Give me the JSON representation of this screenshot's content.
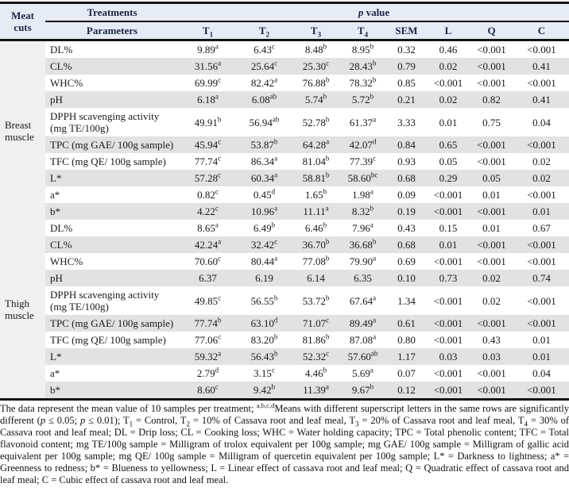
{
  "colors": {
    "header_bg": "#e6ecf6",
    "stripe_gray": "#e2e2e2",
    "group_column_bg": "#f0f0f0",
    "border_black": "#141414",
    "header_text": "#1c2340"
  },
  "header": {
    "meat_cuts": "Meat cuts",
    "treatments": "Treatments",
    "parameters": "Parameters",
    "p_italic": "p",
    "p_rest": " value",
    "t_cols": [
      {
        "t": "T",
        "sub": "1"
      },
      {
        "t": "T",
        "sub": "2"
      },
      {
        "t": "T",
        "sub": "3"
      },
      {
        "t": "T",
        "sub": "4"
      }
    ],
    "stat_cols": [
      "SEM",
      "L",
      "Q",
      "C"
    ]
  },
  "sections": [
    {
      "group": "Breast muscle",
      "rows": [
        {
          "param": "DL%",
          "values": [
            {
              "v": "9.89",
              "sup": "a"
            },
            {
              "v": "6.43",
              "sup": "c"
            },
            {
              "v": "8.48",
              "sup": "b"
            },
            {
              "v": "8.95",
              "sup": "b"
            }
          ],
          "stats": [
            "0.32",
            "0.46",
            "<0.001",
            "<0.001"
          ]
        },
        {
          "param": "CL%",
          "values": [
            {
              "v": "31.56",
              "sup": "a"
            },
            {
              "v": "25.64",
              "sup": "c"
            },
            {
              "v": "25.30",
              "sup": "c"
            },
            {
              "v": "28.43",
              "sup": "b"
            }
          ],
          "stats": [
            "0.79",
            "0.02",
            "<0.001",
            "0.41"
          ]
        },
        {
          "param": "WHC%",
          "values": [
            {
              "v": "69.99",
              "sup": "c"
            },
            {
              "v": "82.42",
              "sup": "a"
            },
            {
              "v": "76.88",
              "sup": "b"
            },
            {
              "v": "78.32",
              "sup": "b"
            }
          ],
          "stats": [
            "0.85",
            "<0.001",
            "<0.001",
            "<0.001"
          ]
        },
        {
          "param": "pH",
          "values": [
            {
              "v": "6.18",
              "sup": "a"
            },
            {
              "v": "6.08",
              "sup": "ab"
            },
            {
              "v": "5.74",
              "sup": "b"
            },
            {
              "v": "5.72",
              "sup": "b"
            }
          ],
          "stats": [
            "0.21",
            "0.02",
            "0.82",
            "0.41"
          ]
        },
        {
          "param": "DPPH scavenging activity (mg TE/100g)",
          "values": [
            {
              "v": "49.91",
              "sup": "b"
            },
            {
              "v": "56.94",
              "sup": "ab"
            },
            {
              "v": "52.78",
              "sup": "b"
            },
            {
              "v": "61.37",
              "sup": "a"
            }
          ],
          "stats": [
            "3.33",
            "0.01",
            "0.75",
            "0.04"
          ]
        },
        {
          "param": "TPC (mg GAE/ 100g sample)",
          "values": [
            {
              "v": "45.94",
              "sup": "c"
            },
            {
              "v": "53.87",
              "sup": "b"
            },
            {
              "v": "64.28",
              "sup": "a"
            },
            {
              "v": "42.07",
              "sup": "d"
            }
          ],
          "stats": [
            "0.84",
            "0.65",
            "<0.001",
            "<0.001"
          ]
        },
        {
          "param": "TFC (mg QE/ 100g sample)",
          "values": [
            {
              "v": "77.74",
              "sup": "c"
            },
            {
              "v": "86.34",
              "sup": "a"
            },
            {
              "v": "81.04",
              "sup": "b"
            },
            {
              "v": "77.39",
              "sup": "c"
            }
          ],
          "stats": [
            "0.93",
            "0.05",
            "<0.001",
            "0.02"
          ]
        },
        {
          "param": "L*",
          "values": [
            {
              "v": "57.28",
              "sup": "c"
            },
            {
              "v": "60.34",
              "sup": "a"
            },
            {
              "v": "58.81",
              "sup": "b"
            },
            {
              "v": "58.60",
              "sup": "bc"
            }
          ],
          "stats": [
            "0.68",
            "0.29",
            "0.05",
            "0.02"
          ]
        },
        {
          "param": "a*",
          "values": [
            {
              "v": "0.82",
              "sup": "c"
            },
            {
              "v": "0.45",
              "sup": "d"
            },
            {
              "v": "1.65",
              "sup": "b"
            },
            {
              "v": "1.98",
              "sup": "a"
            }
          ],
          "stats": [
            "0.09",
            "<0.001",
            "0.01",
            "<0.001"
          ]
        },
        {
          "param": "b*",
          "values": [
            {
              "v": "4.22",
              "sup": "c"
            },
            {
              "v": "10.96",
              "sup": "a"
            },
            {
              "v": "11.11",
              "sup": "a"
            },
            {
              "v": "8.32",
              "sup": "b"
            }
          ],
          "stats": [
            "0.19",
            "<0.001",
            "<0.001",
            "0.01"
          ]
        }
      ]
    },
    {
      "group": "Thigh muscle",
      "rows": [
        {
          "param": "DL%",
          "values": [
            {
              "v": "8.65",
              "sup": "a"
            },
            {
              "v": "6.49",
              "sup": "b"
            },
            {
              "v": "6.46",
              "sup": "b"
            },
            {
              "v": "7.96",
              "sup": "a"
            }
          ],
          "stats": [
            "0.43",
            "0.15",
            "0.01",
            "0.67"
          ]
        },
        {
          "param": "CL%",
          "values": [
            {
              "v": "42.24",
              "sup": "a"
            },
            {
              "v": "32.42",
              "sup": "c"
            },
            {
              "v": "36.70",
              "sup": "b"
            },
            {
              "v": "36.68",
              "sup": "b"
            }
          ],
          "stats": [
            "0.68",
            "0.01",
            "<0.001",
            "<0.001"
          ]
        },
        {
          "param": "WHC%",
          "values": [
            {
              "v": "70.60",
              "sup": "c"
            },
            {
              "v": "80.44",
              "sup": "a"
            },
            {
              "v": "77.08",
              "sup": "b"
            },
            {
              "v": "79.90",
              "sup": "a"
            }
          ],
          "stats": [
            "0.69",
            "<0.001",
            "<0.001",
            "<0.001"
          ]
        },
        {
          "param": "pH",
          "values": [
            {
              "v": "6.37",
              "sup": ""
            },
            {
              "v": "6.19",
              "sup": ""
            },
            {
              "v": "6.14",
              "sup": ""
            },
            {
              "v": "6.35",
              "sup": ""
            }
          ],
          "stats": [
            "0.10",
            "0.73",
            "0.02",
            "0.74"
          ]
        },
        {
          "param": "DPPH scavenging activity (mg TE/100g)",
          "values": [
            {
              "v": "49.85",
              "sup": "c"
            },
            {
              "v": "56.55",
              "sup": "b"
            },
            {
              "v": "53.72",
              "sup": "b"
            },
            {
              "v": "67.64",
              "sup": "a"
            }
          ],
          "stats": [
            "1.34",
            "<0.001",
            "0.02",
            "<0.001"
          ]
        },
        {
          "param": "TPC (mg GAE/ 100g sample)",
          "values": [
            {
              "v": "77.74",
              "sup": "b"
            },
            {
              "v": "63.10",
              "sup": "d"
            },
            {
              "v": "71.07",
              "sup": "c"
            },
            {
              "v": "89.49",
              "sup": "a"
            }
          ],
          "stats": [
            "0.61",
            "<0.001",
            "<0.001",
            "<0.001"
          ]
        },
        {
          "param": "TFC (mg QE/ 100g sample)",
          "values": [
            {
              "v": "77.06",
              "sup": "c"
            },
            {
              "v": "83.20",
              "sup": "b"
            },
            {
              "v": "81.86",
              "sup": "b"
            },
            {
              "v": "87.08",
              "sup": "a"
            }
          ],
          "stats": [
            "0.80",
            "<0.001",
            "0.43",
            "0.01"
          ]
        },
        {
          "param": "L*",
          "values": [
            {
              "v": "59.32",
              "sup": "a"
            },
            {
              "v": "56.43",
              "sup": "b"
            },
            {
              "v": "52.32",
              "sup": "c"
            },
            {
              "v": "57.60",
              "sup": "ab"
            }
          ],
          "stats": [
            "1.17",
            "0.03",
            "0.03",
            "0.01"
          ]
        },
        {
          "param": "a*",
          "values": [
            {
              "v": "2.79",
              "sup": "d"
            },
            {
              "v": "3.15",
              "sup": "c"
            },
            {
              "v": "4.46",
              "sup": "b"
            },
            {
              "v": "5.69",
              "sup": "a"
            }
          ],
          "stats": [
            "0.07",
            "<0.001",
            "<0.001",
            "0.04"
          ]
        },
        {
          "param": "b*",
          "values": [
            {
              "v": "8.60",
              "sup": "c"
            },
            {
              "v": "9.42",
              "sup": "b"
            },
            {
              "v": "11.39",
              "sup": "a"
            },
            {
              "v": "9.67",
              "sup": "b"
            }
          ],
          "stats": [
            "0.12",
            "<0.001",
            "<0.001",
            "<0.001"
          ]
        }
      ]
    }
  ],
  "footnote_segments": [
    {
      "t": "The data represent the mean value of 10 samples per treatment; ",
      "s": "n"
    },
    {
      "t": "a,b,c,d",
      "s": "sup"
    },
    {
      "t": "Means with different superscript letters in the same rows are significantly different (",
      "s": "n"
    },
    {
      "t": "p",
      "s": "i"
    },
    {
      "t": " ≤ 0.05; ",
      "s": "n"
    },
    {
      "t": "p",
      "s": "i"
    },
    {
      "t": " ≤ 0.01); T",
      "s": "n"
    },
    {
      "t": "1",
      "s": "sub"
    },
    {
      "t": " = Control, T",
      "s": "n"
    },
    {
      "t": "2",
      "s": "sub"
    },
    {
      "t": " = 10% of Cassava root and leaf meal, T",
      "s": "n"
    },
    {
      "t": "3",
      "s": "sub"
    },
    {
      "t": " = 20% of Cassava root and leaf meal, T",
      "s": "n"
    },
    {
      "t": "4",
      "s": "sub"
    },
    {
      "t": " = 30% of Cassava root and leaf meal; DL = Drip loss; CL = Cooking loss; WHC = Water holding capacity; TPC = Total phenolic content; TFC = Total flavonoid content; mg TE/100g sample = Milligram of trolox equivalent per 100g sample; mg GAE/ 100g sample = Milligram of gallic acid equivalent per 100g sample; mg QE/ 100g sample = Milligram of quercetin equivalent per 100g sample; L* = Darkness to lightness; a* = Greenness to redness; b* = Blueness to yellowness; L = Linear effect of cassava root and leaf meal; Q = Quadratic effect of cassava root and leaf meal; C = Cubic effect of cassava root and leaf meal.",
      "s": "n"
    }
  ]
}
